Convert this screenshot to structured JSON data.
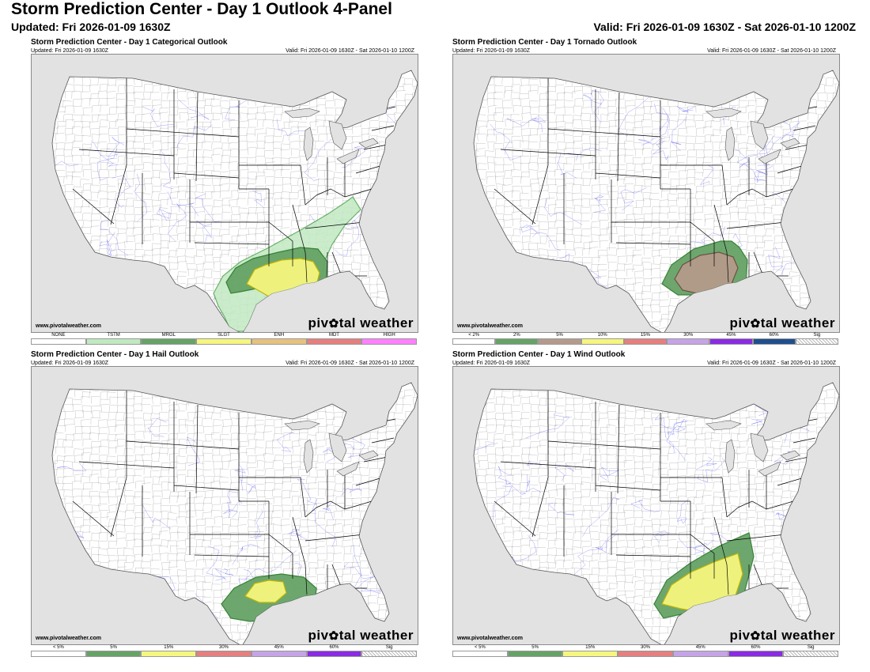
{
  "page": {
    "title": "Storm Prediction Center - Day 1 Outlook 4-Panel",
    "updated": "Updated: Fri 2026-01-09 1630Z",
    "valid": "Valid: Fri 2026-01-09 1630Z - Sat 2026-01-10 1200Z"
  },
  "panels": [
    {
      "title": "Storm Prediction Center - Day 1 Categorical Outlook",
      "updated": "Updated: Fri 2026-01-09 1630Z",
      "valid": "Valid: Fri 2026-01-09 1630Z - Sat 2026-01-10 1200Z",
      "credit": "www.pivotalweather.com",
      "brand_left": "piv",
      "brand_right": "tal weather",
      "legend": [
        {
          "label": "NONE",
          "color": "#ffffff"
        },
        {
          "label": "TSTM",
          "color": "#c1e9c1"
        },
        {
          "label": "MRGL",
          "color": "#66a366"
        },
        {
          "label": "SLGT",
          "color": "#f6f67f"
        },
        {
          "label": "ENH",
          "color": "#e6c27f"
        },
        {
          "label": "MDT",
          "color": "#e67f7f"
        },
        {
          "label": "HIGH",
          "color": "#ff80ff"
        }
      ]
    },
    {
      "title": "Storm Prediction Center - Day 1 Tornado Outlook",
      "updated": "Updated: Fri 2026-01-09 1630Z",
      "valid": "Valid: Fri 2026-01-09 1630Z - Sat 2026-01-10 1200Z",
      "credit": "www.pivotalweather.com",
      "brand_left": "piv",
      "brand_right": "tal weather",
      "legend": [
        {
          "label": "< 2%",
          "color": "#ffffff"
        },
        {
          "label": "2%",
          "color": "#66a366"
        },
        {
          "label": "5%",
          "color": "#b59a8c"
        },
        {
          "label": "10%",
          "color": "#f6f67f"
        },
        {
          "label": "15%",
          "color": "#e67f7f"
        },
        {
          "label": "30%",
          "color": "#c6a3e6"
        },
        {
          "label": "45%",
          "color": "#8a2be2"
        },
        {
          "label": "60%",
          "color": "#1f4e8c"
        },
        {
          "label": "Sig",
          "color": "hatch"
        }
      ]
    },
    {
      "title": "Storm Prediction Center - Day 1 Hail Outlook",
      "updated": "Updated: Fri 2026-01-09 1630Z",
      "valid": "Valid: Fri 2026-01-09 1630Z - Sat 2026-01-10 1200Z",
      "credit": "www.pivotalweather.com",
      "brand_left": "piv",
      "brand_right": "tal weather",
      "legend": [
        {
          "label": "< 5%",
          "color": "#ffffff"
        },
        {
          "label": "5%",
          "color": "#66a366"
        },
        {
          "label": "15%",
          "color": "#f6f67f"
        },
        {
          "label": "30%",
          "color": "#e67f7f"
        },
        {
          "label": "45%",
          "color": "#c6a3e6"
        },
        {
          "label": "60%",
          "color": "#8a2be2"
        },
        {
          "label": "Sig",
          "color": "hatch"
        }
      ]
    },
    {
      "title": "Storm Prediction Center - Day 1 Wind Outlook",
      "updated": "Updated: Fri 2026-01-09 1630Z",
      "valid": "Valid: Fri 2026-01-09 1630Z - Sat 2026-01-10 1200Z",
      "credit": "www.pivotalweather.com",
      "brand_left": "piv",
      "brand_right": "tal weather",
      "legend": [
        {
          "label": "< 5%",
          "color": "#ffffff"
        },
        {
          "label": "5%",
          "color": "#66a366"
        },
        {
          "label": "15%",
          "color": "#f6f67f"
        },
        {
          "label": "30%",
          "color": "#e67f7f"
        },
        {
          "label": "45%",
          "color": "#c6a3e6"
        },
        {
          "label": "60%",
          "color": "#8a2be2"
        },
        {
          "label": "Sig",
          "color": "hatch"
        }
      ]
    }
  ],
  "colors": {
    "land": "#ffffff",
    "water": "#e2e2e2",
    "state_border": "#000000",
    "county_border": "#9a9a9a",
    "rivers": "#3b3bff"
  }
}
